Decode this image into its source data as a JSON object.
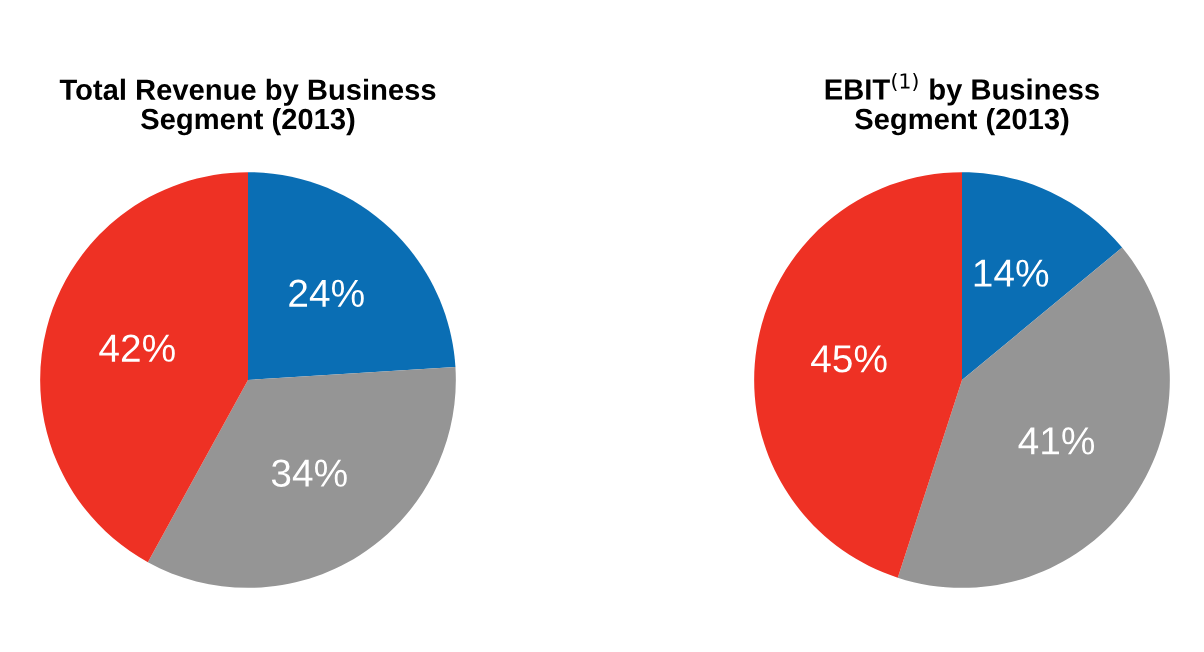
{
  "chart_data": [
    {
      "type": "pie",
      "title": "Total Revenue by Business\nSegment (2013)",
      "categories": [
        null,
        null,
        null
      ],
      "values": [
        24,
        34,
        42
      ],
      "colors": [
        "#0a6eb4",
        "#959595",
        "#ee3124"
      ],
      "value_labels": [
        "24%",
        "34%",
        "42%"
      ]
    },
    {
      "type": "pie",
      "title": "EBIT$^{(1)}$ by Business\nSegment (2013)",
      "categories": [
        null,
        null,
        null
      ],
      "values": [
        14,
        41,
        45
      ],
      "colors": [
        "#0a6eb4",
        "#959595",
        "#ee3124"
      ],
      "value_labels": [
        "14%",
        "41%",
        "45%"
      ]
    }
  ]
}
